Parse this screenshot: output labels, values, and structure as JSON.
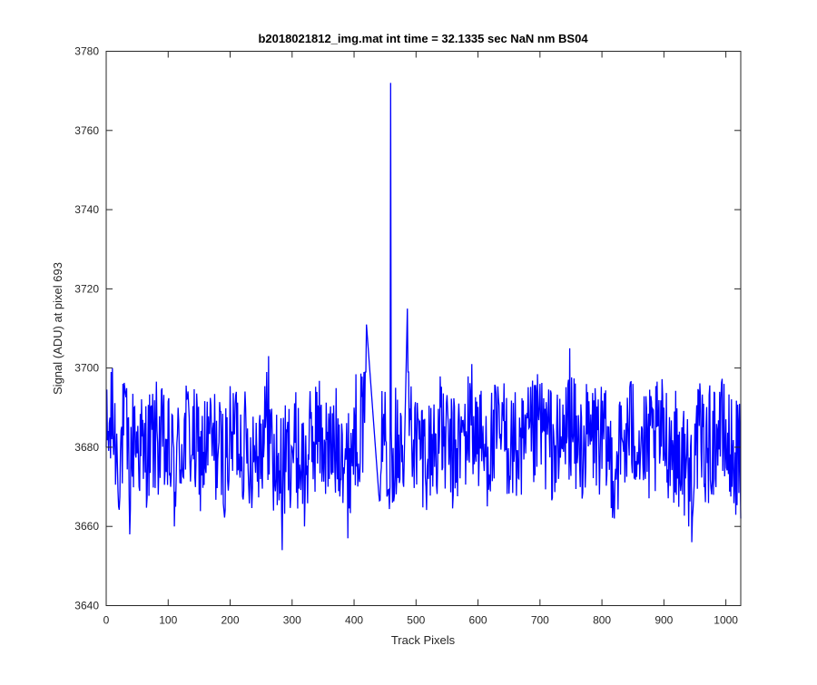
{
  "chart_data": {
    "type": "line",
    "title": "b2018021812_img.mat int time = 32.1335 sec  NaN nm BS04",
    "xlabel": "Track Pixels",
    "ylabel": "Signal (ADU) at pixel 693",
    "xlim": [
      0,
      1024
    ],
    "ylim": [
      3640,
      3780
    ],
    "xticks": [
      0,
      100,
      200,
      300,
      400,
      500,
      600,
      700,
      800,
      900,
      1000
    ],
    "yticks": [
      3640,
      3660,
      3680,
      3700,
      3720,
      3740,
      3760,
      3780
    ],
    "line_color": "#0000ff",
    "grid": false,
    "series": [
      {
        "x": [
          0,
          10,
          20,
          30,
          38,
          45,
          60,
          80,
          95,
          110,
          130,
          150,
          170,
          190,
          210,
          230,
          250,
          262,
          270,
          284,
          300,
          320,
          340,
          360,
          380,
          390,
          400,
          420,
          440,
          450,
          458,
          459,
          460,
          462,
          470,
          480,
          486,
          500,
          520,
          540,
          560,
          590,
          610,
          640,
          670,
          700,
          730,
          748,
          760,
          790,
          820,
          850,
          870,
          900,
          930,
          940,
          945,
          950,
          970,
          990,
          1010,
          1024
        ],
        "y": [
          3680,
          3700,
          3665,
          3695,
          3658,
          3690,
          3672,
          3686,
          3674,
          3660,
          3692,
          3668,
          3684,
          3664,
          3694,
          3670,
          3686,
          3703,
          3664,
          3654,
          3680,
          3660,
          3694,
          3672,
          3686,
          3657,
          3690,
          3711,
          3668,
          3694,
          3670,
          3772,
          3684,
          3666,
          3692,
          3670,
          3715,
          3680,
          3672,
          3690,
          3668,
          3701,
          3674,
          3690,
          3668,
          3696,
          3672,
          3705,
          3676,
          3690,
          3662,
          3696,
          3672,
          3690,
          3668,
          3660,
          3656,
          3686,
          3676,
          3694,
          3670,
          3662
        ]
      }
    ]
  }
}
